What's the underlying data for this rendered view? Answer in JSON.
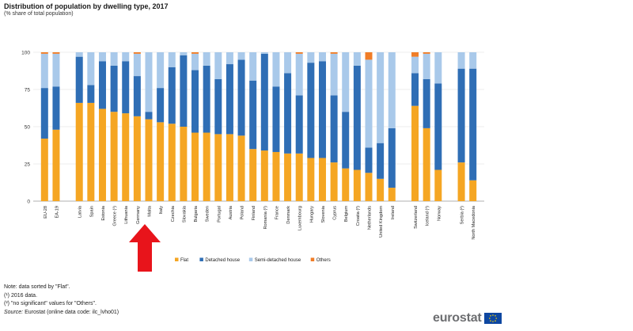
{
  "header": {
    "title": "Distribution of population by dwelling type, 2017",
    "subtitle": "(% share of total population)"
  },
  "colors": {
    "flat": "#f5a623",
    "detached": "#2f6eb5",
    "semi": "#a9c9ea",
    "others": "#f07d27",
    "grid": "#dedede",
    "arrow": "#e8141b"
  },
  "chart_data": {
    "type": "bar",
    "stacked": true,
    "ylim": [
      0,
      100
    ],
    "yticks": [
      0,
      25,
      50,
      75,
      100
    ],
    "legend_position": "bottom",
    "categories": [
      "EU-28",
      "EA-19",
      "Latvia",
      "Spain",
      "Estonia",
      "Greece (¹)",
      "Lithuania",
      "Germany",
      "Malta",
      "Italy",
      "Czechia",
      "Slovakia",
      "Bulgaria",
      "Sweden",
      "Portugal",
      "Austria",
      "Poland",
      "Finland",
      "Romania (²)",
      "France",
      "Denmark",
      "Luxembourg",
      "Hungary",
      "Slovenia",
      "Cyprus",
      "Belgium",
      "Croatia (²)",
      "Netherlands",
      "United Kingdom",
      "Ireland",
      "Switzerland",
      "Iceland (¹)",
      "Norway",
      "Serbia (²)",
      "North Macedonia"
    ],
    "groups": [
      [
        0,
        1
      ],
      [
        2,
        29
      ],
      [
        30,
        32
      ],
      [
        33,
        34
      ]
    ],
    "series": [
      {
        "name": "Flat",
        "values": [
          42,
          48,
          66,
          66,
          62,
          60,
          59,
          57,
          55,
          53,
          52,
          50,
          46,
          46,
          45,
          45,
          44,
          35,
          34,
          33,
          32,
          32,
          29,
          29,
          26,
          22,
          21,
          19,
          15,
          9,
          64,
          49,
          21,
          26,
          14
        ]
      },
      {
        "name": "Detached house",
        "values": [
          34,
          29,
          31,
          12,
          32,
          31,
          35,
          27,
          5,
          23,
          38,
          48,
          42,
          45,
          37,
          47,
          51,
          46,
          65,
          44,
          54,
          39,
          64,
          65,
          45,
          38,
          70,
          17,
          24,
          40,
          22,
          33,
          58,
          63,
          75
        ]
      },
      {
        "name": "Semi-detached house",
        "values": [
          23,
          22,
          3,
          22,
          6,
          9,
          6,
          15,
          40,
          24,
          10,
          2,
          11,
          9,
          18,
          8,
          5,
          19,
          1,
          23,
          14,
          28,
          7,
          6,
          28,
          40,
          9,
          59,
          61,
          51,
          11,
          17,
          21,
          11,
          11
        ]
      },
      {
        "name": "Others",
        "values": [
          1,
          1,
          0,
          0,
          0,
          0,
          0,
          1,
          0,
          0,
          0,
          0,
          1,
          0,
          0,
          0,
          0,
          0,
          0,
          0,
          0,
          1,
          0,
          0,
          1,
          0,
          0,
          5,
          0,
          0,
          3,
          1,
          0,
          0,
          0
        ]
      }
    ]
  },
  "footer": {
    "note": "Note: data sorted by \"Flat\".",
    "note1": "(¹) 2016 data.",
    "note2": "(²) \"no significant\" values for \"Others\".",
    "source_label": "Source:",
    "source_text": " Eurostat (online data code: ilc_lvho01)",
    "brand": "eurostat"
  }
}
